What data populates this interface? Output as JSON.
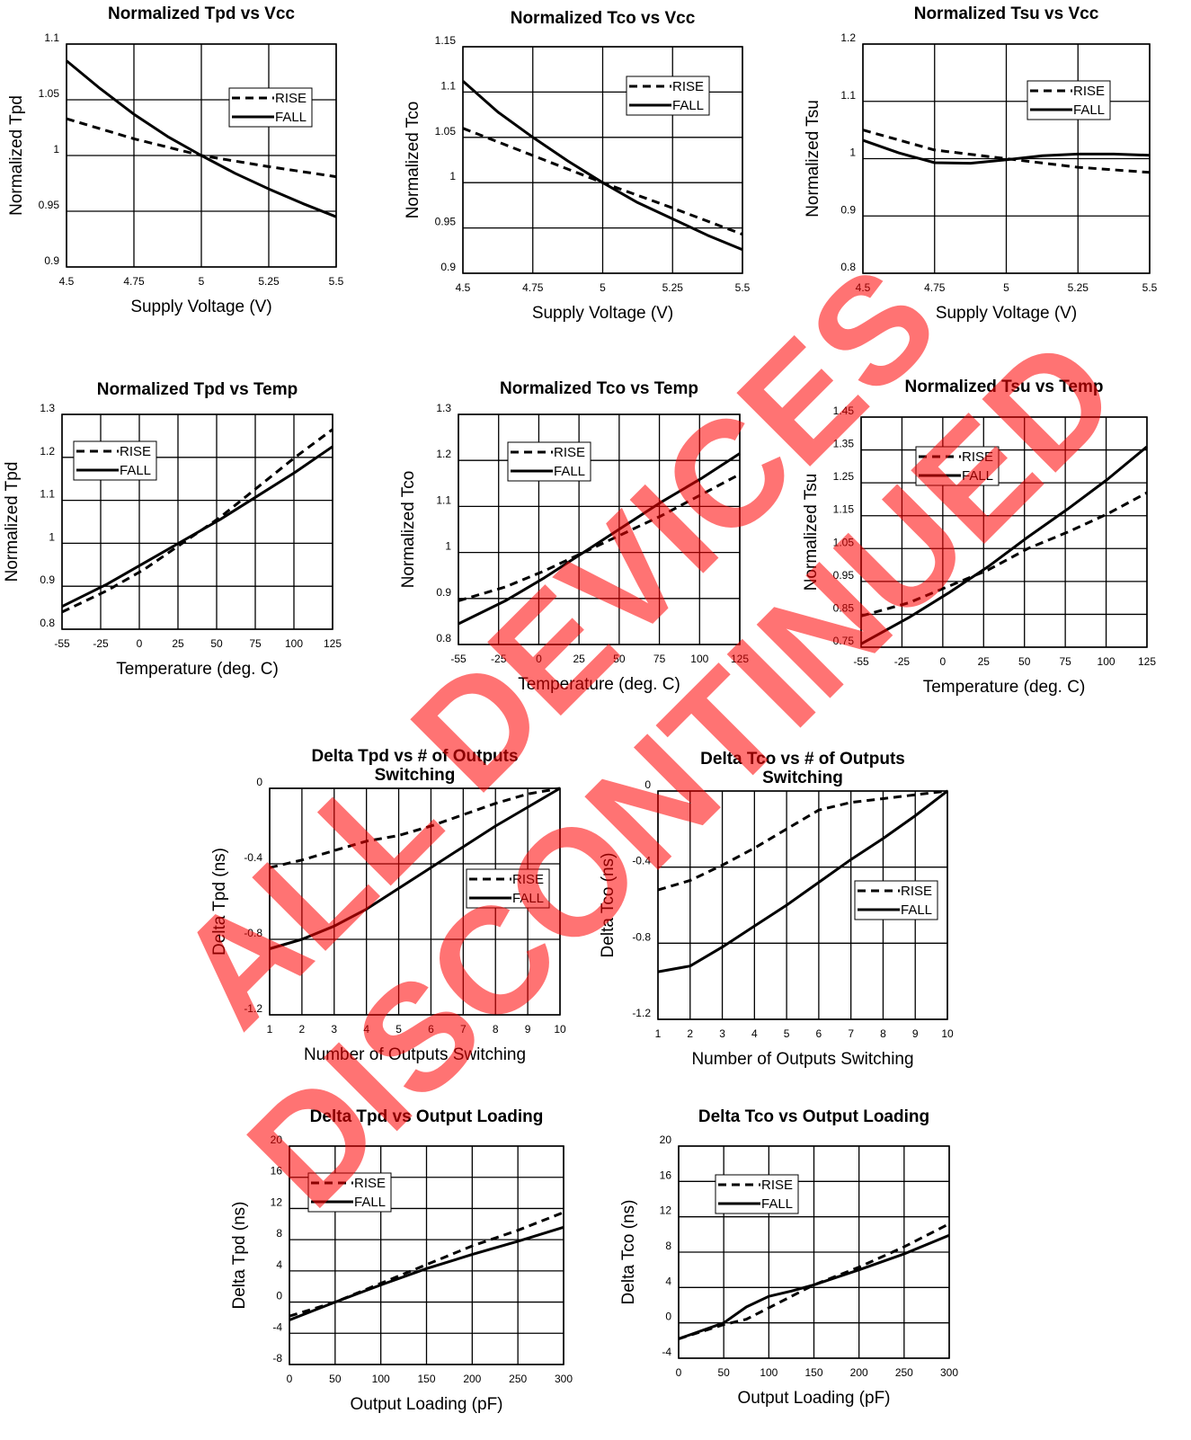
{
  "watermark": {
    "line1": "ALL DEVICES",
    "line2": "DISCONTINUED",
    "color": "#ff0000"
  },
  "legend": [
    "RISE",
    "FALL"
  ],
  "chart_data": [
    {
      "type": "line",
      "title": "Normalized Tpd vs Vcc",
      "xlabel": "Supply Voltage (V)",
      "ylabel": "Normalized Tpd",
      "xlim": [
        4.5,
        5.5
      ],
      "ylim": [
        0.9,
        1.1
      ],
      "xticks": [
        "4.5",
        "4.75",
        "5",
        "5.25",
        "5.5"
      ],
      "yticks": [
        "0.9",
        "0.95",
        "1",
        "1.05",
        "1.1"
      ],
      "legend_placement": "top-right",
      "grid": true,
      "series": [
        {
          "name": "RISE",
          "x": [
            4.5,
            4.75,
            5,
            5.25,
            5.5
          ],
          "y": [
            1.033,
            1.015,
            1.0,
            0.99,
            0.981
          ]
        },
        {
          "name": "FALL",
          "x": [
            4.5,
            4.625,
            4.75,
            4.875,
            5,
            5.125,
            5.25,
            5.375,
            5.5
          ],
          "y": [
            1.085,
            1.06,
            1.037,
            1.017,
            1.0,
            0.984,
            0.97,
            0.957,
            0.945
          ]
        }
      ]
    },
    {
      "type": "line",
      "title": "Normalized Tco vs Vcc",
      "xlabel": "Supply Voltage (V)",
      "ylabel": "Normalized Tco",
      "xlim": [
        4.5,
        5.5
      ],
      "ylim": [
        0.9,
        1.15
      ],
      "xticks": [
        "4.5",
        "4.75",
        "5",
        "5.25",
        "5.5"
      ],
      "yticks": [
        "0.9",
        "0.95",
        "1",
        "1.05",
        "1.1",
        "1.15"
      ],
      "legend_placement": "top-right",
      "grid": true,
      "series": [
        {
          "name": "RISE",
          "x": [
            4.5,
            4.75,
            5,
            5.25,
            5.5
          ],
          "y": [
            1.06,
            1.03,
            1.0,
            0.972,
            0.943
          ]
        },
        {
          "name": "FALL",
          "x": [
            4.5,
            4.625,
            4.75,
            4.875,
            5,
            5.125,
            5.25,
            5.375,
            5.5
          ],
          "y": [
            1.112,
            1.078,
            1.05,
            1.024,
            1.0,
            0.978,
            0.96,
            0.942,
            0.926
          ]
        }
      ]
    },
    {
      "type": "line",
      "title": "Normalized Tsu vs Vcc",
      "xlabel": "Supply Voltage (V)",
      "ylabel": "Normalized Tsu",
      "xlim": [
        4.5,
        5.5
      ],
      "ylim": [
        0.8,
        1.2
      ],
      "xticks": [
        "4.5",
        "4.75",
        "5",
        "5.25",
        "5.5"
      ],
      "yticks": [
        "0.8",
        "0.9",
        "1",
        "1.1",
        "1.2"
      ],
      "legend_placement": "top-right",
      "grid": true,
      "series": [
        {
          "name": "RISE",
          "x": [
            4.5,
            4.75,
            5,
            5.25,
            5.5
          ],
          "y": [
            1.05,
            1.015,
            1.0,
            0.985,
            0.976
          ]
        },
        {
          "name": "FALL",
          "x": [
            4.5,
            4.625,
            4.75,
            4.875,
            5,
            5.125,
            5.25,
            5.375,
            5.5
          ],
          "y": [
            1.032,
            1.01,
            0.993,
            0.992,
            0.998,
            1.005,
            1.008,
            1.008,
            1.006
          ]
        }
      ]
    },
    {
      "type": "line",
      "title": "Normalized Tpd vs Temp",
      "xlabel": "Temperature (deg. C)",
      "ylabel": "Normalized Tpd",
      "xlim": [
        -55,
        125
      ],
      "ylim": [
        0.8,
        1.3
      ],
      "xticks": [
        "-55",
        "-25",
        "0",
        "25",
        "50",
        "75",
        "100",
        "125"
      ],
      "yticks": [
        "0.8",
        "0.9",
        "1",
        "1.1",
        "1.2",
        "1.3"
      ],
      "legend_placement": "top-left",
      "grid": true,
      "series": [
        {
          "name": "RISE",
          "x": [
            -55,
            -25,
            0,
            25,
            50,
            75,
            100,
            125
          ],
          "y": [
            0.84,
            0.89,
            0.94,
            1.0,
            1.06,
            1.13,
            1.2,
            1.265
          ]
        },
        {
          "name": "FALL",
          "x": [
            -55,
            -25,
            0,
            25,
            50,
            75,
            100,
            125
          ],
          "y": [
            0.853,
            0.905,
            0.955,
            1.005,
            1.055,
            1.11,
            1.165,
            1.225
          ]
        }
      ]
    },
    {
      "type": "line",
      "title": "Normalized Tco vs Temp",
      "xlabel": "Temperature (deg. C)",
      "ylabel": "Normalized Tco",
      "xlim": [
        -55,
        125
      ],
      "ylim": [
        0.8,
        1.3
      ],
      "xticks": [
        "-55",
        "-25",
        "0",
        "25",
        "50",
        "75",
        "100",
        "125"
      ],
      "yticks": [
        "0.8",
        "0.9",
        "1",
        "1.1",
        "1.2",
        "1.3"
      ],
      "legend_placement": "top-left",
      "grid": true,
      "series": [
        {
          "name": "RISE",
          "x": [
            -55,
            -25,
            0,
            25,
            50,
            75,
            100,
            125
          ],
          "y": [
            0.895,
            0.925,
            0.96,
            1.0,
            1.04,
            1.08,
            1.125,
            1.17
          ]
        },
        {
          "name": "FALL",
          "x": [
            -55,
            -25,
            0,
            25,
            50,
            75,
            100,
            125
          ],
          "y": [
            0.845,
            0.895,
            0.945,
            1.0,
            1.055,
            1.11,
            1.16,
            1.215
          ]
        }
      ]
    },
    {
      "type": "line",
      "title": "Normalized Tsu vs Temp",
      "xlabel": "Temperature (deg. C)",
      "ylabel": "Normalized Tsu",
      "xlim": [
        -55,
        125
      ],
      "ylim": [
        0.75,
        1.45
      ],
      "xticks": [
        "-55",
        "-25",
        "0",
        "25",
        "50",
        "75",
        "100",
        "125"
      ],
      "yticks": [
        "0.75",
        "0.85",
        "0.95",
        "1.05",
        "1.15",
        "1.25",
        "1.35",
        "1.45"
      ],
      "legend_placement": "top-center",
      "grid": true,
      "series": [
        {
          "name": "RISE",
          "x": [
            -55,
            -25,
            0,
            25,
            50,
            75,
            100,
            125
          ],
          "y": [
            0.845,
            0.885,
            0.935,
            0.985,
            1.05,
            1.1,
            1.155,
            1.22
          ]
        },
        {
          "name": "FALL",
          "x": [
            -55,
            -25,
            0,
            25,
            50,
            75,
            100,
            125
          ],
          "y": [
            0.76,
            0.84,
            0.915,
            0.995,
            1.085,
            1.17,
            1.26,
            1.36
          ]
        }
      ]
    },
    {
      "type": "line",
      "title": "Delta Tpd vs # of Outputs Switching",
      "title_lines": [
        "Delta Tpd vs # of Outputs",
        "Switching"
      ],
      "xlabel": "Number of Outputs Switching",
      "ylabel": "Delta Tpd (ns)",
      "xlim": [
        1,
        10
      ],
      "ylim": [
        -1.2,
        0
      ],
      "xticks": [
        "1",
        "2",
        "3",
        "4",
        "5",
        "6",
        "7",
        "8",
        "9",
        "10"
      ],
      "yticks": [
        "-1.2",
        "-0.8",
        "-0.4",
        "0"
      ],
      "legend_placement": "center-right",
      "grid": true,
      "series": [
        {
          "name": "RISE",
          "x": [
            1,
            2,
            3,
            4,
            5,
            6,
            7,
            8,
            9,
            10
          ],
          "y": [
            -0.42,
            -0.38,
            -0.33,
            -0.28,
            -0.25,
            -0.2,
            -0.14,
            -0.08,
            -0.03,
            0
          ]
        },
        {
          "name": "FALL",
          "x": [
            1,
            2,
            3,
            4,
            5,
            6,
            7,
            8,
            9,
            10
          ],
          "y": [
            -0.85,
            -0.8,
            -0.73,
            -0.64,
            -0.53,
            -0.42,
            -0.31,
            -0.2,
            -0.1,
            0
          ]
        }
      ]
    },
    {
      "type": "line",
      "title": "Delta Tco vs # of Outputs Switching",
      "title_lines": [
        "Delta Tco vs # of Outputs",
        "Switching"
      ],
      "xlabel": "Number of Outputs Switching",
      "ylabel": "Delta Tco (ns)",
      "xlim": [
        1,
        10
      ],
      "ylim": [
        -1.2,
        0
      ],
      "xticks": [
        "1",
        "2",
        "3",
        "4",
        "5",
        "6",
        "7",
        "8",
        "9",
        "10"
      ],
      "yticks": [
        "-1.2",
        "-0.8",
        "-0.4",
        "0"
      ],
      "legend_placement": "center-right",
      "grid": true,
      "series": [
        {
          "name": "RISE",
          "x": [
            1,
            2,
            3,
            4,
            5,
            6,
            7,
            8,
            9,
            10
          ],
          "y": [
            -0.52,
            -0.47,
            -0.39,
            -0.3,
            -0.2,
            -0.1,
            -0.06,
            -0.04,
            -0.02,
            0
          ]
        },
        {
          "name": "FALL",
          "x": [
            1,
            2,
            3,
            4,
            5,
            6,
            7,
            8,
            9,
            10
          ],
          "y": [
            -0.95,
            -0.92,
            -0.82,
            -0.71,
            -0.6,
            -0.48,
            -0.36,
            -0.25,
            -0.13,
            0
          ]
        }
      ]
    },
    {
      "type": "line",
      "title": "Delta Tpd vs Output Loading",
      "xlabel": "Output Loading (pF)",
      "ylabel": "Delta Tpd (ns)",
      "xlim": [
        0,
        300
      ],
      "ylim": [
        -8,
        20
      ],
      "xticks": [
        "0",
        "50",
        "100",
        "150",
        "200",
        "250",
        "300"
      ],
      "yticks": [
        "-8",
        "-4",
        "0",
        "4",
        "8",
        "12",
        "16",
        "20"
      ],
      "legend_placement": "top-left",
      "grid": true,
      "series": [
        {
          "name": "RISE",
          "x": [
            0,
            50,
            100,
            150,
            200,
            250,
            300
          ],
          "y": [
            -1.8,
            0,
            2.4,
            4.8,
            7.2,
            9.2,
            11.5
          ]
        },
        {
          "name": "FALL",
          "x": [
            0,
            50,
            100,
            150,
            200,
            250,
            300
          ],
          "y": [
            -2.3,
            0,
            2.2,
            4.3,
            6.1,
            7.8,
            9.6
          ]
        }
      ]
    },
    {
      "type": "line",
      "title": "Delta Tco vs Output Loading",
      "xlabel": "Output Loading (pF)",
      "ylabel": "Delta Tco (ns)",
      "xlim": [
        0,
        300
      ],
      "ylim": [
        -4,
        20
      ],
      "xticks": [
        "0",
        "50",
        "100",
        "150",
        "200",
        "250",
        "300"
      ],
      "yticks": [
        "-4",
        "0",
        "4",
        "8",
        "12",
        "16",
        "20"
      ],
      "legend_placement": "top-left",
      "grid": true,
      "series": [
        {
          "name": "RISE",
          "x": [
            0,
            50,
            75,
            100,
            125,
            150,
            200,
            250,
            300
          ],
          "y": [
            -1.8,
            -0.2,
            0.4,
            1.7,
            3.0,
            4.3,
            6.3,
            8.6,
            11.2
          ]
        },
        {
          "name": "FALL",
          "x": [
            0,
            50,
            75,
            100,
            125,
            150,
            200,
            250,
            300
          ],
          "y": [
            -1.8,
            0,
            1.8,
            3.0,
            3.6,
            4.3,
            6.0,
            7.8,
            9.9
          ]
        }
      ]
    }
  ]
}
